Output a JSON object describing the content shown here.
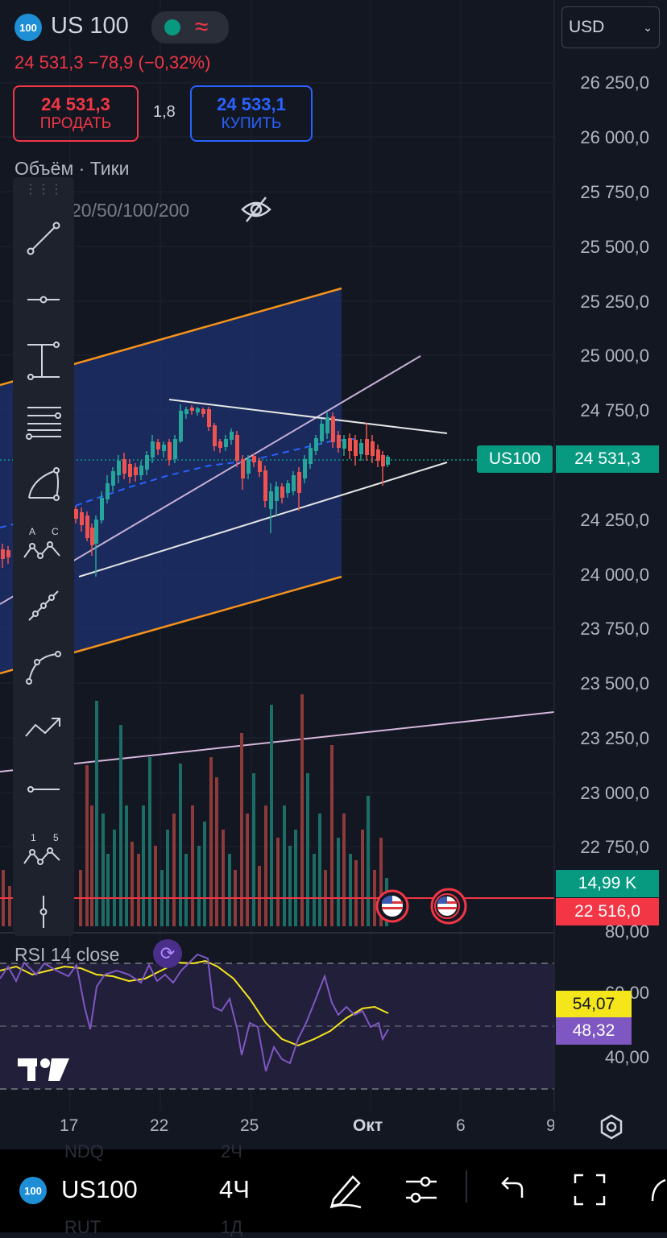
{
  "header": {
    "logo_text": "100",
    "symbol": "US 100",
    "price_change": "24 531,3 −78,9 (−0,32%)",
    "sell": {
      "price": "24 531,3",
      "label": "ПРОДАТЬ"
    },
    "spread": "1,8",
    "buy": {
      "price": "24 533,1",
      "label": "КУПИТЬ"
    },
    "currency": "USD"
  },
  "legends": {
    "volume": "Объём · Тики",
    "ma": "20/50/100/200",
    "rsi": "RSI 14 close"
  },
  "price_axis": {
    "labels": [
      "26 250,0",
      "26 000,0",
      "25 750,0",
      "25 500,0",
      "25 250,0",
      "25 000,0",
      "24 750,0",
      "24 250,0",
      "24 000,0",
      "23 750,0",
      "23 500,0",
      "23 250,0",
      "23 000,0",
      "22 750,0"
    ],
    "current_symbol": "US100",
    "current_price": "24 531,3",
    "volume_tag": "14,99 K",
    "alert_price": "22 516,0"
  },
  "rsi_axis": {
    "labels": [
      "80,00",
      "60,00",
      "40,00"
    ],
    "rsi_ma": "54,07",
    "rsi": "48,32"
  },
  "time_axis": [
    "17",
    "22",
    "25",
    "Окт",
    "6",
    "9"
  ],
  "bottom_bar": {
    "logo_text": "100",
    "symbol": "US100",
    "interval": "4Ч",
    "ghost_top": [
      "NDQ",
      "2Ч"
    ],
    "ghost_bottom": [
      "RUT",
      "1Д"
    ]
  },
  "toolbar_labels": {
    "pattern_abc": [
      "A",
      "C"
    ],
    "elliott": [
      "1",
      "5"
    ]
  },
  "colors": {
    "up": "#26a69a",
    "down": "#ef5350",
    "channel": "#f7931a",
    "price_tag": "#089981",
    "alert": "#f23645",
    "rsi": "#7e57c2",
    "rsi_ma": "#f5e61c"
  }
}
